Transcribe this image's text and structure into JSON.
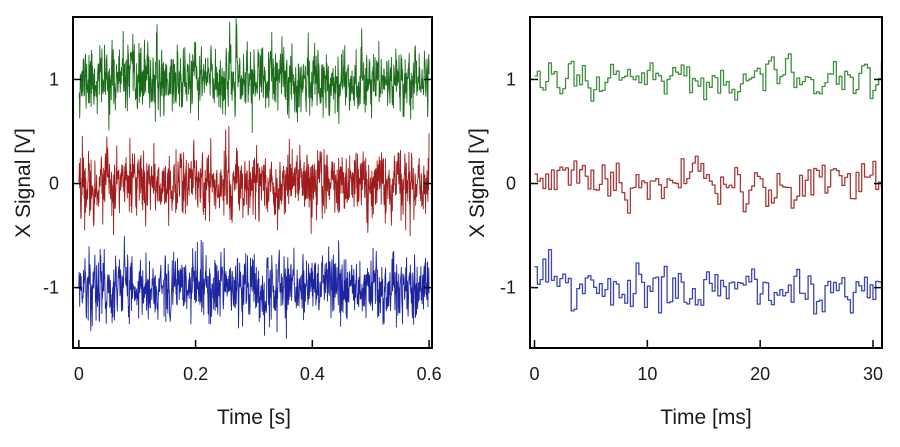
{
  "chart_data": [
    {
      "type": "line",
      "xlabel": "Time [s]",
      "ylabel": "X Signal [V]",
      "xlim": [
        -0.01,
        0.605
      ],
      "ylim": [
        -1.58,
        1.6
      ],
      "xticks": [
        0,
        0.2,
        0.4,
        0.6
      ],
      "xtick_labels": [
        "0",
        "0.2",
        "0.4",
        "0.6"
      ],
      "yticks": [
        1,
        0,
        -1
      ],
      "ytick_labels": [
        "1",
        "0",
        "-1"
      ],
      "grid": false,
      "legend": "none",
      "series": [
        {
          "color": "#1a6b1a",
          "offset": 1,
          "noise_amplitude": 0.45,
          "sample_step": 0.0005,
          "x_range": [
            0,
            0.6
          ],
          "seed": 11
        },
        {
          "color": "#a01c1c",
          "offset": 0,
          "noise_amplitude": 0.45,
          "sample_step": 0.0005,
          "x_range": [
            0,
            0.6
          ],
          "seed": 22
        },
        {
          "color": "#1c24a0",
          "offset": -1,
          "noise_amplitude": 0.45,
          "sample_step": 0.0005,
          "x_range": [
            0,
            0.6
          ],
          "seed": 33
        }
      ]
    },
    {
      "type": "line",
      "xlabel": "Time [ms]",
      "ylabel": "X Signal [V]",
      "xlim": [
        -0.4,
        30.8
      ],
      "ylim": [
        -1.58,
        1.6
      ],
      "xticks": [
        0,
        10,
        20,
        30
      ],
      "xtick_labels": [
        "0",
        "10",
        "20",
        "30"
      ],
      "yticks": [
        1,
        0,
        -1
      ],
      "ytick_labels": [
        "1",
        "0",
        "-1"
      ],
      "grid": false,
      "legend": "none",
      "series": [
        {
          "color": "#3f8f3f",
          "offset": 1,
          "noise_amplitude": 0.3,
          "sample_step": 0.25,
          "x_range": [
            0,
            30.8
          ],
          "seed": 44
        },
        {
          "color": "#a63a3a",
          "offset": 0,
          "noise_amplitude": 0.3,
          "sample_step": 0.25,
          "x_range": [
            0,
            30.8
          ],
          "seed": 55
        },
        {
          "color": "#3d45b0",
          "offset": -1,
          "noise_amplitude": 0.3,
          "sample_step": 0.25,
          "x_range": [
            0,
            30.8
          ],
          "seed": 66
        }
      ]
    }
  ]
}
